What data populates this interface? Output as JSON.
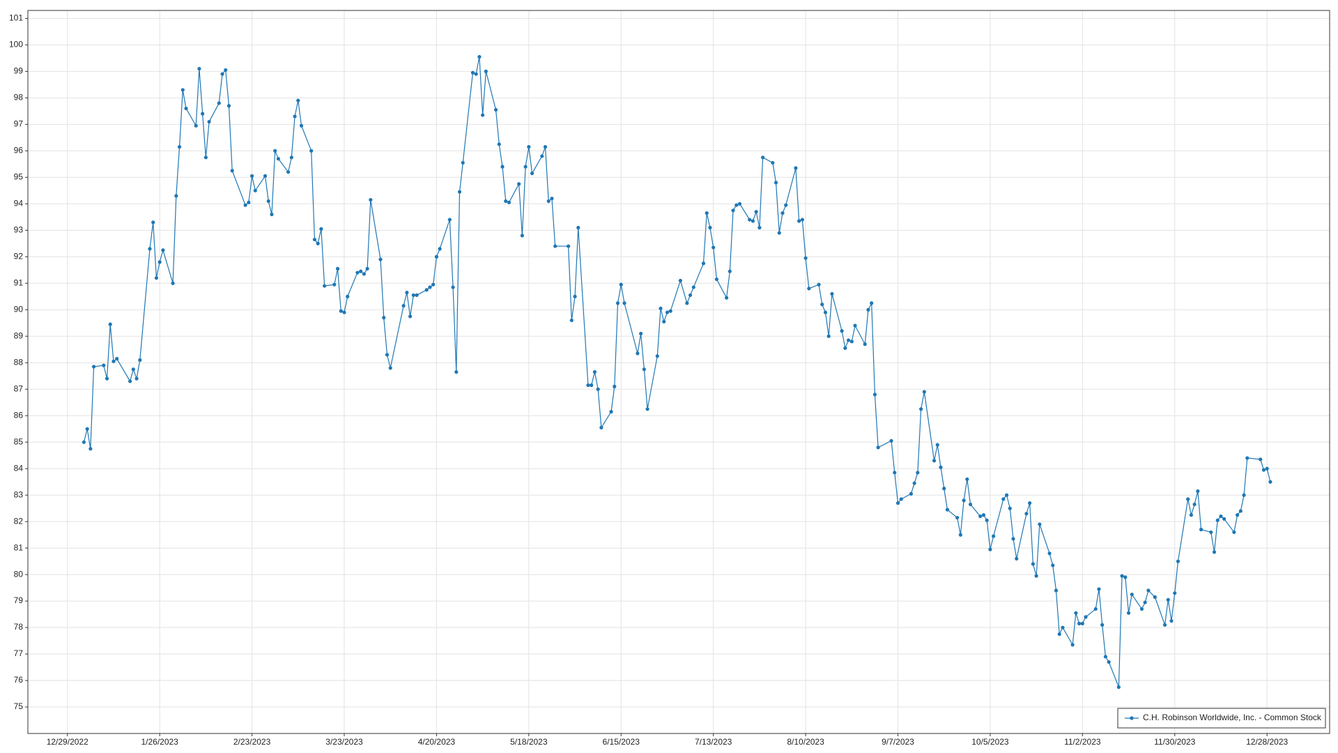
{
  "chart_data": {
    "type": "line",
    "x": [
      "1/3/2023",
      "1/4/2023",
      "1/5/2023",
      "1/6/2023",
      "1/9/2023",
      "1/10/2023",
      "1/11/2023",
      "1/12/2023",
      "1/13/2023",
      "1/17/2023",
      "1/18/2023",
      "1/19/2023",
      "1/20/2023",
      "1/23/2023",
      "1/24/2023",
      "1/25/2023",
      "1/26/2023",
      "1/27/2023",
      "1/30/2023",
      "1/31/2023",
      "2/1/2023",
      "2/2/2023",
      "2/3/2023",
      "2/6/2023",
      "2/7/2023",
      "2/8/2023",
      "2/9/2023",
      "2/10/2023",
      "2/13/2023",
      "2/14/2023",
      "2/15/2023",
      "2/16/2023",
      "2/17/2023",
      "2/21/2023",
      "2/22/2023",
      "2/23/2023",
      "2/24/2023",
      "2/27/2023",
      "2/28/2023",
      "3/1/2023",
      "3/2/2023",
      "3/3/2023",
      "3/6/2023",
      "3/7/2023",
      "3/8/2023",
      "3/9/2023",
      "3/10/2023",
      "3/13/2023",
      "3/14/2023",
      "3/15/2023",
      "3/16/2023",
      "3/17/2023",
      "3/20/2023",
      "3/21/2023",
      "3/22/2023",
      "3/23/2023",
      "3/24/2023",
      "3/27/2023",
      "3/28/2023",
      "3/29/2023",
      "3/30/2023",
      "3/31/2023",
      "4/3/2023",
      "4/4/2023",
      "4/5/2023",
      "4/6/2023",
      "4/10/2023",
      "4/11/2023",
      "4/12/2023",
      "4/13/2023",
      "4/14/2023",
      "4/17/2023",
      "4/18/2023",
      "4/19/2023",
      "4/20/2023",
      "4/21/2023",
      "4/24/2023",
      "4/25/2023",
      "4/26/2023",
      "4/27/2023",
      "4/28/2023",
      "5/1/2023",
      "5/2/2023",
      "5/3/2023",
      "5/4/2023",
      "5/5/2023",
      "5/8/2023",
      "5/9/2023",
      "5/10/2023",
      "5/11/2023",
      "5/12/2023",
      "5/15/2023",
      "5/16/2023",
      "5/17/2023",
      "5/18/2023",
      "5/19/2023",
      "5/22/2023",
      "5/23/2023",
      "5/24/2023",
      "5/25/2023",
      "5/26/2023",
      "5/30/2023",
      "5/31/2023",
      "6/1/2023",
      "6/2/2023",
      "6/5/2023",
      "6/6/2023",
      "6/7/2023",
      "6/8/2023",
      "6/9/2023",
      "6/12/2023",
      "6/13/2023",
      "6/14/2023",
      "6/15/2023",
      "6/16/2023",
      "6/20/2023",
      "6/21/2023",
      "6/22/2023",
      "6/23/2023",
      "6/26/2023",
      "6/27/2023",
      "6/28/2023",
      "6/29/2023",
      "6/30/2023",
      "7/3/2023",
      "7/5/2023",
      "7/6/2023",
      "7/7/2023",
      "7/10/2023",
      "7/11/2023",
      "7/12/2023",
      "7/13/2023",
      "7/14/2023",
      "7/17/2023",
      "7/18/2023",
      "7/19/2023",
      "7/20/2023",
      "7/21/2023",
      "7/24/2023",
      "7/25/2023",
      "7/26/2023",
      "7/27/2023",
      "7/28/2023",
      "7/31/2023",
      "8/1/2023",
      "8/2/2023",
      "8/3/2023",
      "8/4/2023",
      "8/7/2023",
      "8/8/2023",
      "8/9/2023",
      "8/10/2023",
      "8/11/2023",
      "8/14/2023",
      "8/15/2023",
      "8/16/2023",
      "8/17/2023",
      "8/18/2023",
      "8/21/2023",
      "8/22/2023",
      "8/23/2023",
      "8/24/2023",
      "8/25/2023",
      "8/28/2023",
      "8/29/2023",
      "8/30/2023",
      "8/31/2023",
      "9/1/2023",
      "9/5/2023",
      "9/6/2023",
      "9/7/2023",
      "9/8/2023",
      "9/11/2023",
      "9/12/2023",
      "9/13/2023",
      "9/14/2023",
      "9/15/2023",
      "9/18/2023",
      "9/19/2023",
      "9/20/2023",
      "9/21/2023",
      "9/22/2023",
      "9/25/2023",
      "9/26/2023",
      "9/27/2023",
      "9/28/2023",
      "9/29/2023",
      "10/2/2023",
      "10/3/2023",
      "10/4/2023",
      "10/5/2023",
      "10/6/2023",
      "10/9/2023",
      "10/10/2023",
      "10/11/2023",
      "10/12/2023",
      "10/13/2023",
      "10/16/2023",
      "10/17/2023",
      "10/18/2023",
      "10/19/2023",
      "10/20/2023",
      "10/23/2023",
      "10/24/2023",
      "10/25/2023",
      "10/26/2023",
      "10/27/2023",
      "10/30/2023",
      "10/31/2023",
      "11/1/2023",
      "11/2/2023",
      "11/3/2023",
      "11/6/2023",
      "11/7/2023",
      "11/8/2023",
      "11/9/2023",
      "11/10/2023",
      "11/13/2023",
      "11/14/2023",
      "11/15/2023",
      "11/16/2023",
      "11/17/2023",
      "11/20/2023",
      "11/21/2023",
      "11/22/2023",
      "11/24/2023",
      "11/27/2023",
      "11/28/2023",
      "11/29/2023",
      "11/30/2023",
      "12/1/2023",
      "12/4/2023",
      "12/5/2023",
      "12/6/2023",
      "12/7/2023",
      "12/8/2023",
      "12/11/2023",
      "12/12/2023",
      "12/13/2023",
      "12/14/2023",
      "12/15/2023",
      "12/18/2023",
      "12/19/2023",
      "12/20/2023",
      "12/21/2023",
      "12/22/2023",
      "12/26/2023",
      "12/27/2023",
      "12/28/2023",
      "12/29/2023"
    ],
    "series": [
      {
        "name": "C.H. Robinson Worldwide, Inc. - Common Stock",
        "color": "#1f77b4",
        "values": [
          85.0,
          85.5,
          84.75,
          87.85,
          87.9,
          87.4,
          89.45,
          88.05,
          88.15,
          87.3,
          87.75,
          87.4,
          88.1,
          92.3,
          93.3,
          91.2,
          91.8,
          92.25,
          91.0,
          94.3,
          96.15,
          98.3,
          97.6,
          96.95,
          99.1,
          97.4,
          95.75,
          97.1,
          97.8,
          98.9,
          99.05,
          97.7,
          95.25,
          93.95,
          94.05,
          95.05,
          94.5,
          95.05,
          94.1,
          93.6,
          96.0,
          95.7,
          95.2,
          95.75,
          97.3,
          97.9,
          96.95,
          96.0,
          92.65,
          92.5,
          93.05,
          90.9,
          90.95,
          91.55,
          89.95,
          89.9,
          90.5,
          91.4,
          91.45,
          91.35,
          91.55,
          94.15,
          91.9,
          89.7,
          88.3,
          87.8,
          90.15,
          90.65,
          89.75,
          90.55,
          90.55,
          90.75,
          90.85,
          90.95,
          92.0,
          92.3,
          93.4,
          90.85,
          87.65,
          94.45,
          95.55,
          98.95,
          98.9,
          99.55,
          97.35,
          99.0,
          97.55,
          96.25,
          95.4,
          94.1,
          94.05,
          94.75,
          92.8,
          95.4,
          96.15,
          95.15,
          95.8,
          96.15,
          94.1,
          94.2,
          92.4,
          92.4,
          89.6,
          90.5,
          93.1,
          87.15,
          87.15,
          87.65,
          87.0,
          85.55,
          86.15,
          87.1,
          90.25,
          90.95,
          90.25,
          88.35,
          89.1,
          87.75,
          86.25,
          88.25,
          90.05,
          89.55,
          89.9,
          89.95,
          91.1,
          90.25,
          90.55,
          90.85,
          91.75,
          93.65,
          93.1,
          92.35,
          91.15,
          90.45,
          91.45,
          93.75,
          93.95,
          94.0,
          93.4,
          93.35,
          93.7,
          93.1,
          95.75,
          95.55,
          94.8,
          92.9,
          93.65,
          93.95,
          95.35,
          93.35,
          93.4,
          91.95,
          90.8,
          90.95,
          90.2,
          89.9,
          89.0,
          90.6,
          89.2,
          88.55,
          88.85,
          88.8,
          89.4,
          88.7,
          90.0,
          90.25,
          86.8,
          84.8,
          85.05,
          83.85,
          82.7,
          82.85,
          83.05,
          83.45,
          83.85,
          86.25,
          86.9,
          84.3,
          84.9,
          84.05,
          83.25,
          82.45,
          82.15,
          81.5,
          82.8,
          83.6,
          82.65,
          82.2,
          82.25,
          82.05,
          80.95,
          81.45,
          82.85,
          83.0,
          82.5,
          81.35,
          80.6,
          82.3,
          82.7,
          80.4,
          79.95,
          81.9,
          80.8,
          80.35,
          79.4,
          77.75,
          78.0,
          77.35,
          78.55,
          78.15,
          78.15,
          78.4,
          78.7,
          79.45,
          78.1,
          76.9,
          76.7,
          75.75,
          79.95,
          79.9,
          78.55,
          79.25,
          78.7,
          78.95,
          79.4,
          79.15,
          78.1,
          79.05,
          78.25,
          79.3,
          80.5,
          82.85,
          82.25,
          82.65,
          83.15,
          81.7,
          81.6,
          80.85,
          82.05,
          82.2,
          82.1,
          81.6,
          82.25,
          82.4,
          83.0,
          84.4,
          84.35,
          83.95,
          84.0,
          83.5
        ]
      }
    ],
    "xlim": [
      "12/17/2022",
      "1/16/2024"
    ],
    "xticks": [
      "12/29/2022",
      "1/26/2023",
      "2/23/2023",
      "3/23/2023",
      "4/20/2023",
      "5/18/2023",
      "6/15/2023",
      "7/13/2023",
      "8/10/2023",
      "9/7/2023",
      "10/5/2023",
      "11/2/2023",
      "11/30/2023",
      "12/28/2023"
    ],
    "ylim": [
      74,
      101.3
    ],
    "yticks": [
      75,
      76,
      77,
      78,
      79,
      80,
      81,
      82,
      83,
      84,
      85,
      86,
      87,
      88,
      89,
      90,
      91,
      92,
      93,
      94,
      95,
      96,
      97,
      98,
      99,
      100,
      101
    ],
    "grid": true,
    "legend": "lower right"
  }
}
